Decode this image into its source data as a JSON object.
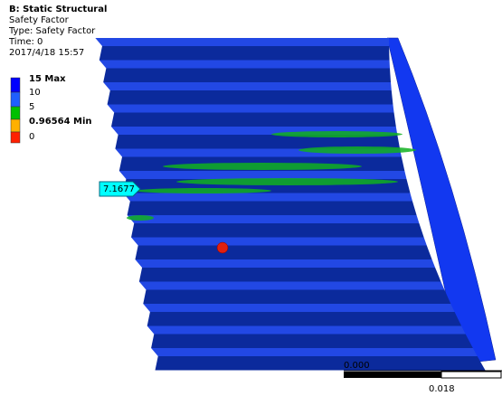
{
  "header": {
    "title": "B: Static Structural",
    "lines": [
      "Safety Factor",
      "Type: Safety Factor",
      "Time: 0",
      "2017/4/18 15:57"
    ]
  },
  "legend": {
    "labels": [
      "15 Max",
      "10",
      "5",
      "0.96564 Min",
      "0"
    ]
  },
  "probe": {
    "label": "7.1677"
  },
  "scale": {
    "start": "0.000",
    "end": "0.018"
  }
}
